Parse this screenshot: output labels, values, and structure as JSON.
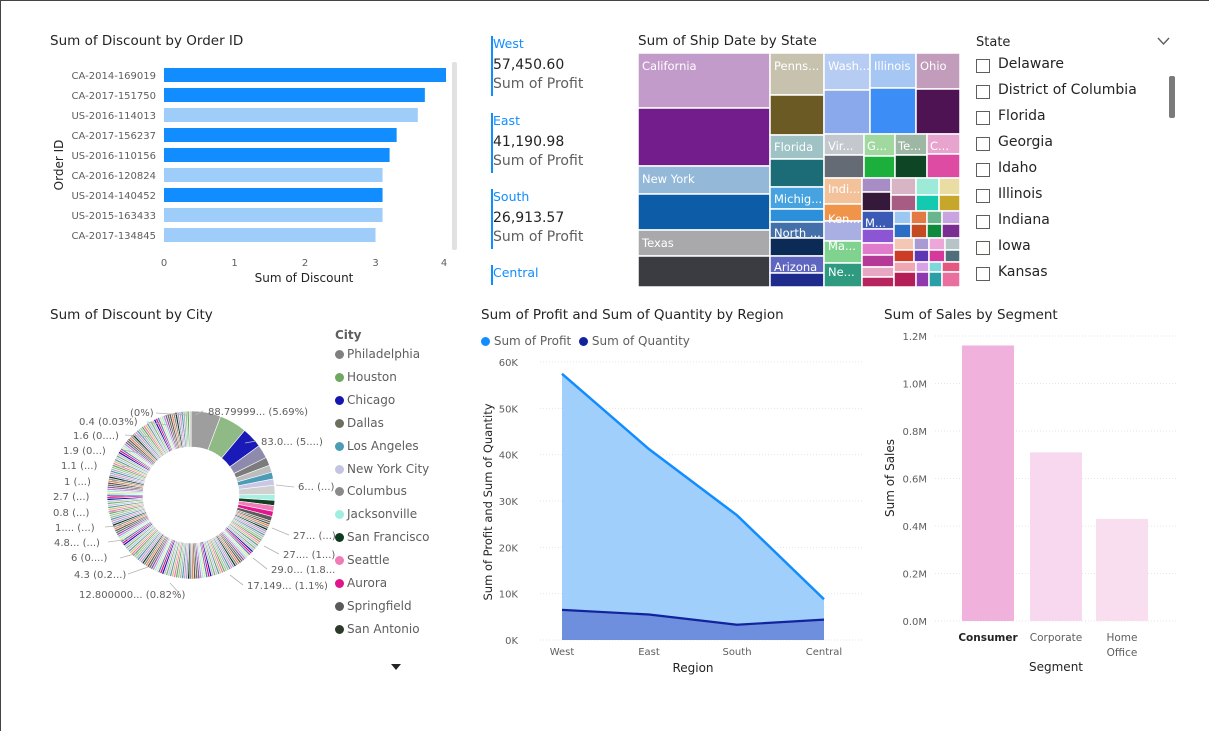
{
  "order_chart": {
    "title": "Sum of Discount by Order ID",
    "ylabel": "Order ID",
    "xlabel": "Sum of Discount",
    "ticks": [
      "0",
      "1",
      "2",
      "3",
      "4"
    ]
  },
  "cards": [
    {
      "region": "West",
      "value": "57,450.60",
      "label": "Sum of Profit"
    },
    {
      "region": "East",
      "value": "41,190.98",
      "label": "Sum of Profit"
    },
    {
      "region": "South",
      "value": "26,913.57",
      "label": "Sum of Profit"
    },
    {
      "region": "Central"
    }
  ],
  "treemap": {
    "title": "Sum of Ship Date by State",
    "labels": [
      "California",
      "New York",
      "Texas",
      "Penns...",
      "Florida",
      "Michig...",
      "North ...",
      "Arizona",
      "Wash...",
      "Illinois",
      "Ohio",
      "Vir...",
      "G...",
      "Te...",
      "C...",
      "Indi...",
      "Ken...",
      "M...",
      "Ma...",
      "Ne..."
    ]
  },
  "slicer": {
    "title": "State",
    "items": [
      "Delaware",
      "District of Columbia",
      "Florida",
      "Georgia",
      "Idaho",
      "Illinois",
      "Indiana",
      "Iowa",
      "Kansas"
    ]
  },
  "donut": {
    "title": "Sum of Discount by City",
    "legend_title": "City",
    "cities": [
      {
        "name": "Philadelphia",
        "color": "#808080"
      },
      {
        "name": "Houston",
        "color": "#6FA860"
      },
      {
        "name": "Chicago",
        "color": "#1515B0"
      },
      {
        "name": "Dallas",
        "color": "#6E6E5E"
      },
      {
        "name": "Los Angeles",
        "color": "#4A9DB5"
      },
      {
        "name": "New York City",
        "color": "#C4C4E0"
      },
      {
        "name": "Columbus",
        "color": "#8A8A8A"
      },
      {
        "name": "Jacksonville",
        "color": "#9FEFE0"
      },
      {
        "name": "San Francisco",
        "color": "#103A20"
      },
      {
        "name": "Seattle",
        "color": "#F07BB8"
      },
      {
        "name": "Aurora",
        "color": "#E0148C"
      },
      {
        "name": "Springfield",
        "color": "#5A5A5A"
      },
      {
        "name": "San Antonio",
        "color": "#2C3A2C"
      }
    ],
    "labels_right": [
      "88.79999... (5.69%)",
      "83.0... (5....)",
      "6... (...)",
      "27... (...)",
      "27.... (1...)",
      "29.0... (1.8...)",
      "17.149... (1.1%)"
    ],
    "labels_left": [
      "(0%)",
      "0.4 (0.03%)",
      "1.6 (0....)",
      "1.9 (0...)",
      "1.1 (...)",
      "1 (...)",
      "2.7 (...)",
      "0.8 (...)",
      "1.... (...)",
      "4.8... (...)",
      "6 (0....)",
      "4.3 (0.2...)",
      "12.800000... (0.82%)"
    ]
  },
  "area_chart": {
    "title": "Sum of Profit and Sum of Quantity by Region",
    "legend": [
      "Sum of Profit",
      "Sum of Quantity"
    ],
    "ylabel": "Sum of Profit and Sum of Quantity",
    "xlabel": "Region",
    "yticks": [
      "0K",
      "10K",
      "20K",
      "30K",
      "40K",
      "50K",
      "60K"
    ]
  },
  "segment_chart": {
    "title": "Sum of Sales by Segment",
    "ylabel": "Sum of Sales",
    "xlabel": "Segment",
    "yticks": [
      "0.0M",
      "0.2M",
      "0.4M",
      "0.6M",
      "0.8M",
      "1.0M",
      "1.2M"
    ],
    "categories": [
      "Consumer",
      "Corporate",
      "Home",
      "Office"
    ]
  },
  "chart_data": [
    {
      "type": "bar",
      "orientation": "horizontal",
      "title": "Sum of Discount by Order ID",
      "xlabel": "Sum of Discount",
      "ylabel": "Order ID",
      "xlim": [
        0,
        4
      ],
      "categories": [
        "CA-2014-169019",
        "CA-2017-151750",
        "US-2016-114013",
        "CA-2017-156237",
        "US-2016-110156",
        "CA-2016-120824",
        "US-2014-140452",
        "US-2015-163433",
        "CA-2017-134845"
      ],
      "values": [
        4.0,
        3.7,
        3.6,
        3.3,
        3.2,
        3.1,
        3.1,
        3.1,
        3.0
      ],
      "colors": [
        "#118DFF",
        "#118DFF",
        "#9ECDFA",
        "#118DFF",
        "#118DFF",
        "#9ECDFA",
        "#118DFF",
        "#9ECDFA",
        "#9ECDFA"
      ]
    },
    {
      "type": "area",
      "title": "Sum of Profit and Sum of Quantity by Region",
      "xlabel": "Region",
      "ylabel": "Sum of Profit and Sum of Quantity",
      "ylim": [
        0,
        60000
      ],
      "categories": [
        "West",
        "East",
        "South",
        "Central"
      ],
      "series": [
        {
          "name": "Sum of Profit",
          "values": [
            57450.6,
            41190.98,
            26913.57,
            8800
          ],
          "color": "#118DFF"
        },
        {
          "name": "Sum of Quantity",
          "values": [
            6500,
            5500,
            3300,
            4400
          ],
          "color": "#12239E"
        }
      ]
    },
    {
      "type": "bar",
      "title": "Sum of Sales by Segment",
      "xlabel": "Segment",
      "ylabel": "Sum of Sales",
      "ylim": [
        0,
        1200000
      ],
      "categories": [
        "Consumer",
        "Corporate",
        "Home Office"
      ],
      "values": [
        1160000,
        710000,
        430000
      ],
      "colors": [
        "#F0B2DC",
        "#F8D8EE",
        "#F8DEEF"
      ]
    }
  ]
}
